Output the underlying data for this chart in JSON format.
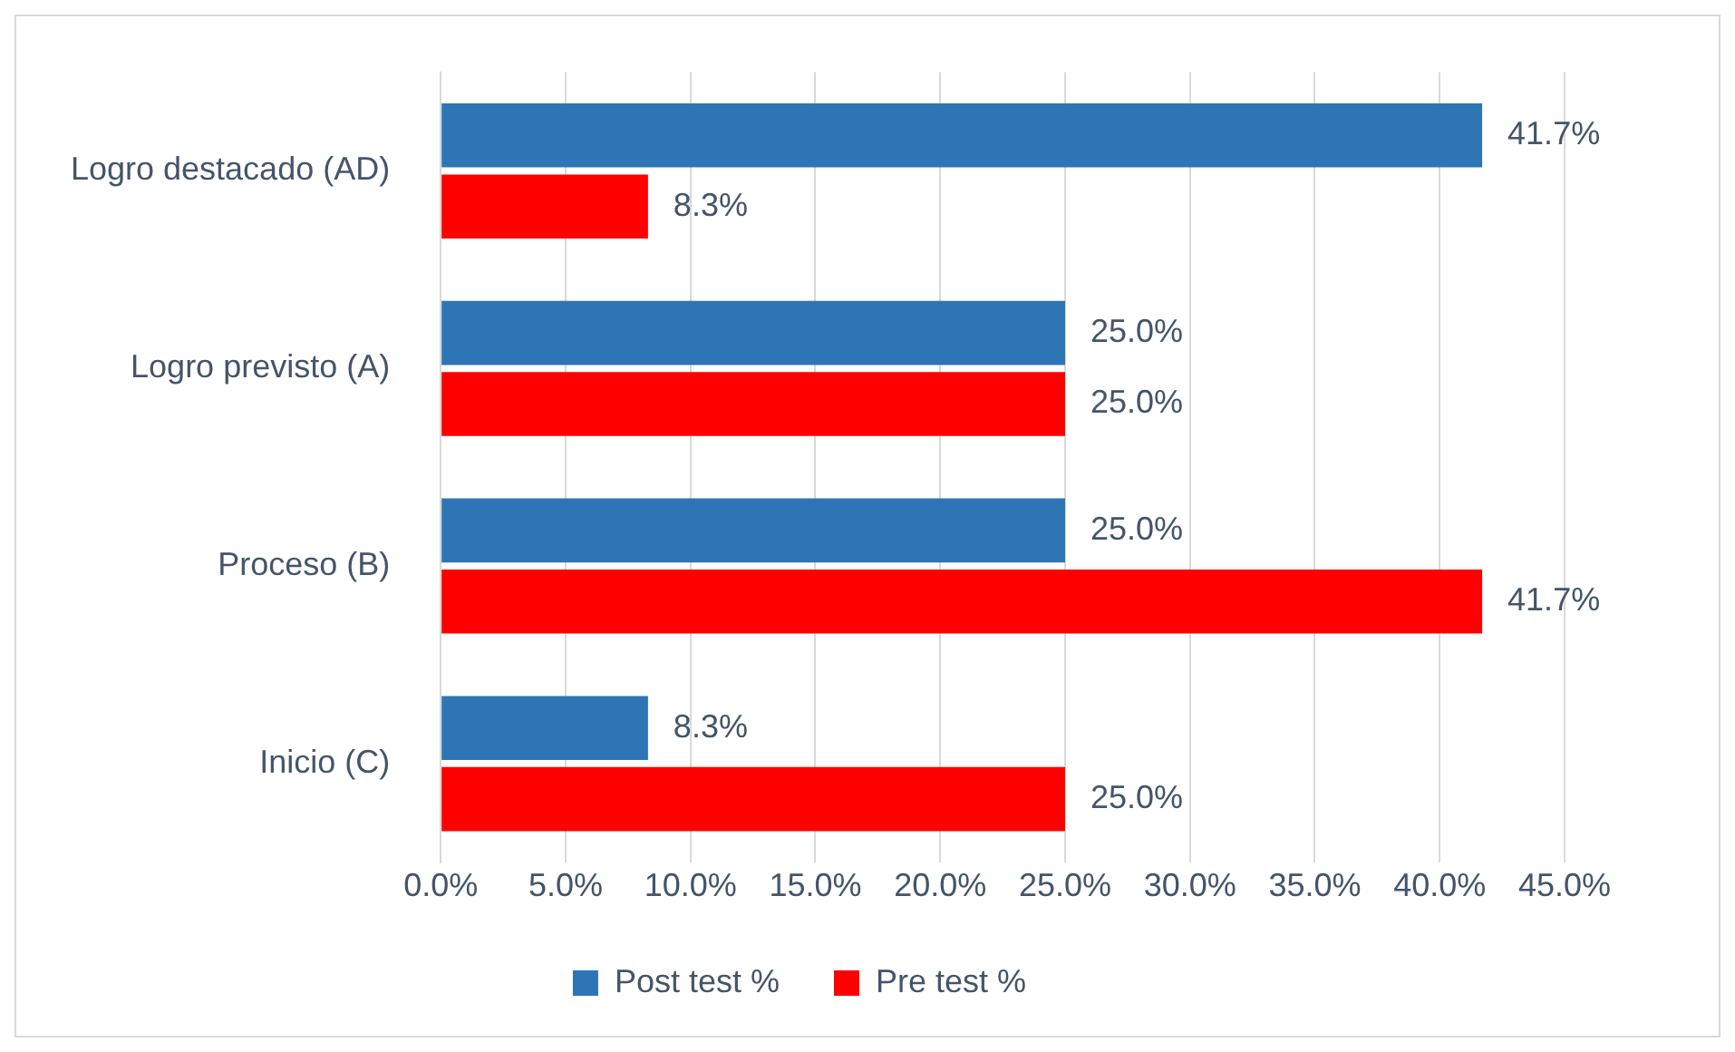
{
  "chart_data": {
    "type": "bar",
    "orientation": "horizontal",
    "categories": [
      "Logro destacado (AD)",
      "Logro previsto (A)",
      "Proceso (B)",
      "Inicio (C)"
    ],
    "series": [
      {
        "name": "Post test %",
        "color": "#2e75b6",
        "values": [
          41.7,
          25.0,
          25.0,
          8.3
        ],
        "value_labels": [
          "41.7%",
          "25.0%",
          "25.0%",
          "8.3%"
        ]
      },
      {
        "name": "Pre test %",
        "color": "#ff0000",
        "values": [
          8.3,
          25.0,
          41.7,
          25.0
        ],
        "value_labels": [
          "8.3%",
          "25.0%",
          "41.7%",
          "25.0%"
        ]
      }
    ],
    "xlim": [
      0,
      45
    ],
    "xticks": [
      {
        "value": 0,
        "label": "0.0%"
      },
      {
        "value": 5,
        "label": "5.0%"
      },
      {
        "value": 10,
        "label": "10.0%"
      },
      {
        "value": 15,
        "label": "15.0%"
      },
      {
        "value": 20,
        "label": "20.0%"
      },
      {
        "value": 25,
        "label": "25.0%"
      },
      {
        "value": 30,
        "label": "30.0%"
      },
      {
        "value": 35,
        "label": "35.0%"
      },
      {
        "value": 40,
        "label": "40.0%"
      },
      {
        "value": 45,
        "label": "45.0%"
      }
    ],
    "grid": "x",
    "legend": "bottom"
  }
}
